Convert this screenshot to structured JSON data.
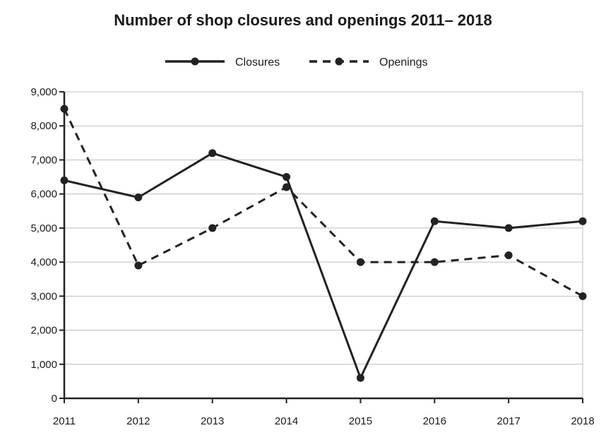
{
  "chart_data": {
    "type": "line",
    "title": "Number of shop closures and openings 2011– 2018",
    "x": [
      "2011",
      "2012",
      "2013",
      "2014",
      "2015",
      "2016",
      "2017",
      "2018"
    ],
    "series": [
      {
        "name": "Closures",
        "style": "solid",
        "values": [
          6400,
          5900,
          7200,
          6500,
          600,
          5200,
          5000,
          5200
        ]
      },
      {
        "name": "Openings",
        "style": "dashed",
        "values": [
          8500,
          3900,
          5000,
          6200,
          4000,
          4000,
          4200,
          3000
        ]
      }
    ],
    "ylim": [
      0,
      9000
    ],
    "yticks": [
      "0",
      "1,000",
      "2,000",
      "3,000",
      "4,000",
      "5,000",
      "6,000",
      "7,000",
      "8,000",
      "9,000"
    ],
    "xlabel": "",
    "ylabel": "",
    "grid": "horizontal",
    "legend_position": "top-center",
    "colors": {
      "line": "#222222",
      "grid": "#bdbdbd",
      "axis": "#222222"
    }
  }
}
